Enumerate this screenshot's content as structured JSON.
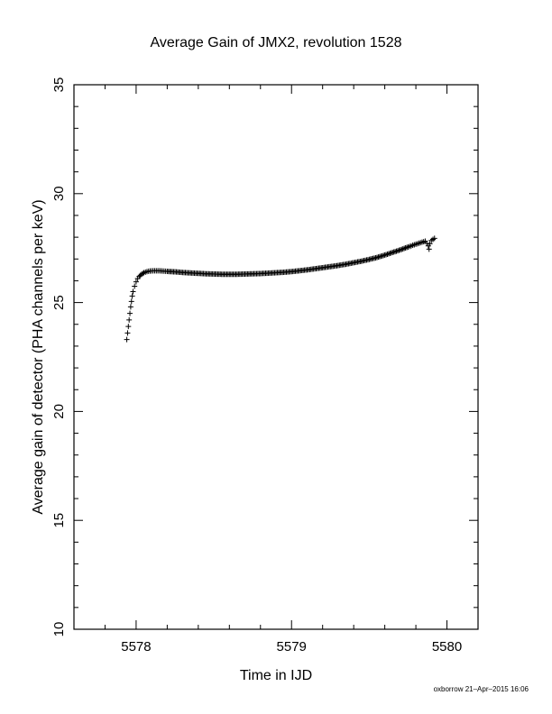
{
  "chart_data": {
    "type": "scatter",
    "title": "Average Gain of JMX2, revolution 1528",
    "xlabel": "Time in IJD",
    "ylabel": "Average gain of detector (PHA channels per keV)",
    "xlim": [
      5577.6,
      5580.2
    ],
    "ylim": [
      10,
      35
    ],
    "xticks": [
      5578,
      5579,
      5580
    ],
    "yticks": [
      10,
      15,
      20,
      25,
      30,
      35
    ],
    "marker": "plus",
    "grid": false,
    "points": [
      [
        5577.94,
        23.3
      ],
      [
        5577.945,
        23.6
      ],
      [
        5577.95,
        23.9
      ],
      [
        5577.955,
        24.2
      ],
      [
        5577.96,
        24.5
      ],
      [
        5577.965,
        24.8
      ],
      [
        5577.97,
        25.05
      ],
      [
        5577.975,
        25.3
      ],
      [
        5577.98,
        25.5
      ],
      [
        5577.99,
        25.75
      ],
      [
        5578.0,
        25.95
      ],
      [
        5578.01,
        26.1
      ],
      [
        5578.02,
        26.2
      ],
      [
        5578.035,
        26.3
      ],
      [
        5578.05,
        26.37
      ],
      [
        5578.07,
        26.42
      ],
      [
        5578.09,
        26.45
      ],
      [
        5578.11,
        26.46
      ],
      [
        5578.14,
        26.46
      ],
      [
        5578.17,
        26.45
      ],
      [
        5578.2,
        26.43
      ],
      [
        5578.25,
        26.41
      ],
      [
        5578.3,
        26.38
      ],
      [
        5578.35,
        26.36
      ],
      [
        5578.4,
        26.34
      ],
      [
        5578.45,
        26.32
      ],
      [
        5578.5,
        26.31
      ],
      [
        5578.55,
        26.3
      ],
      [
        5578.6,
        26.3
      ],
      [
        5578.65,
        26.3
      ],
      [
        5578.7,
        26.31
      ],
      [
        5578.75,
        26.32
      ],
      [
        5578.8,
        26.33
      ],
      [
        5578.85,
        26.35
      ],
      [
        5578.9,
        26.37
      ],
      [
        5578.95,
        26.39
      ],
      [
        5579.0,
        26.42
      ],
      [
        5579.05,
        26.46
      ],
      [
        5579.1,
        26.5
      ],
      [
        5579.15,
        26.55
      ],
      [
        5579.2,
        26.6
      ],
      [
        5579.25,
        26.65
      ],
      [
        5579.3,
        26.7
      ],
      [
        5579.35,
        26.76
      ],
      [
        5579.4,
        26.83
      ],
      [
        5579.45,
        26.9
      ],
      [
        5579.5,
        26.98
      ],
      [
        5579.55,
        27.07
      ],
      [
        5579.6,
        27.18
      ],
      [
        5579.65,
        27.3
      ],
      [
        5579.7,
        27.42
      ],
      [
        5579.75,
        27.55
      ],
      [
        5579.78,
        27.63
      ],
      [
        5579.81,
        27.7
      ],
      [
        5579.84,
        27.77
      ],
      [
        5579.86,
        27.82
      ],
      [
        5579.87,
        27.72
      ],
      [
        5579.88,
        27.6
      ],
      [
        5579.885,
        27.45
      ],
      [
        5579.89,
        27.7
      ],
      [
        5579.9,
        27.85
      ],
      [
        5579.91,
        27.9
      ],
      [
        5579.92,
        27.95
      ]
    ]
  },
  "footer": "oxborrow 21–Apr–2015 16:06"
}
